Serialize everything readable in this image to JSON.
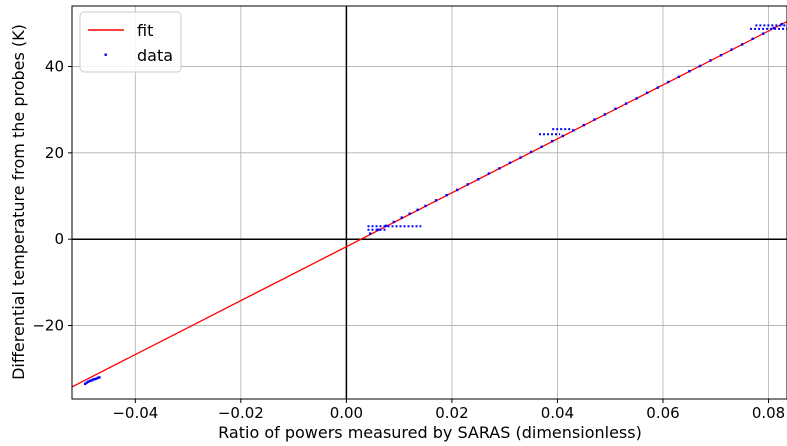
{
  "chart_data": {
    "type": "scatter",
    "title": "",
    "xlabel": "Ratio of powers measured by SARAS (dimensionless)",
    "ylabel": "Differential temperature from the probes (K)",
    "xlim": [
      -0.052,
      0.0835
    ],
    "ylim": [
      -37,
      54
    ],
    "grid": true,
    "legend_position": "top-left",
    "x_ticks": [
      {
        "value": -0.04,
        "label": "−0.04"
      },
      {
        "value": -0.02,
        "label": "−0.02"
      },
      {
        "value": 0.0,
        "label": "0.00"
      },
      {
        "value": 0.02,
        "label": "0.02"
      },
      {
        "value": 0.04,
        "label": "0.04"
      },
      {
        "value": 0.06,
        "label": "0.06"
      },
      {
        "value": 0.08,
        "label": "0.08"
      }
    ],
    "y_ticks": [
      {
        "value": -20,
        "label": "−20"
      },
      {
        "value": 0,
        "label": "0"
      },
      {
        "value": 20,
        "label": "20"
      },
      {
        "value": 40,
        "label": "40"
      }
    ],
    "series": [
      {
        "name": "fit",
        "kind": "line",
        "color": "#ff0000",
        "x": [
          -0.052,
          0.0835
        ],
        "y": [
          -34.2,
          50.4
        ]
      },
      {
        "name": "data",
        "kind": "scatter",
        "color": "#0000ff",
        "x": [
          -0.0495,
          -0.0492,
          -0.0489,
          -0.0486,
          -0.0483,
          -0.048,
          -0.0477,
          -0.0474,
          -0.0471,
          -0.0468,
          0.0045,
          0.006,
          0.0075,
          0.009,
          0.0105,
          0.012,
          0.0135,
          0.015,
          0.017,
          0.019,
          0.021,
          0.023,
          0.025,
          0.027,
          0.029,
          0.031,
          0.033,
          0.035,
          0.037,
          0.039,
          0.041,
          0.043,
          0.045,
          0.047,
          0.049,
          0.051,
          0.053,
          0.055,
          0.057,
          0.059,
          0.061,
          0.063,
          0.065,
          0.067,
          0.069,
          0.071,
          0.073,
          0.075,
          0.077,
          0.079,
          0.081,
          0.0825
        ],
        "y": [
          -33.5,
          -33.2,
          -33.0,
          -32.8,
          -32.7,
          -32.5,
          -32.4,
          -32.3,
          -32.1,
          -32.0,
          1.3,
          2.2,
          3.1,
          4.0,
          5.0,
          5.9,
          6.8,
          7.7,
          9.0,
          10.2,
          11.4,
          12.7,
          13.9,
          15.2,
          16.4,
          17.7,
          18.9,
          20.2,
          21.4,
          22.7,
          23.9,
          25.2,
          26.4,
          27.7,
          28.9,
          30.2,
          31.4,
          32.6,
          33.9,
          35.1,
          36.4,
          37.6,
          38.9,
          40.1,
          41.4,
          42.6,
          43.9,
          45.1,
          46.4,
          47.6,
          48.9,
          49.8
        ],
        "plateaus": [
          {
            "x": [
              0.004,
              0.0142
            ],
            "y": 3.0
          },
          {
            "x": [
              0.004,
              0.0075
            ],
            "y": 2.2
          },
          {
            "x": [
              0.0365,
              0.0405
            ],
            "y": 24.3
          },
          {
            "x": [
              0.039,
              0.0425
            ],
            "y": 25.5
          },
          {
            "x": [
              0.0765,
              0.0835
            ],
            "y": 48.7
          },
          {
            "x": [
              0.0775,
              0.0835
            ],
            "y": 49.5
          }
        ]
      }
    ]
  },
  "legend": [
    {
      "label": "fit",
      "kind": "line",
      "color": "#ff0000"
    },
    {
      "label": "data",
      "kind": "marker",
      "color": "#0000ff"
    }
  ]
}
